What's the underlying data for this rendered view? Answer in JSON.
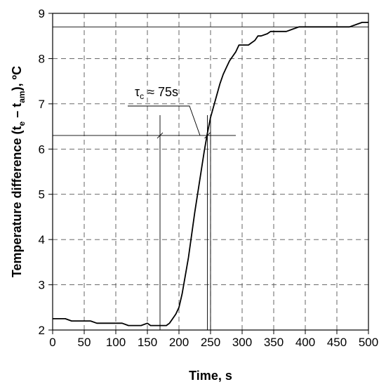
{
  "chart_data": {
    "type": "line",
    "title": "",
    "xlabel": "Time, s",
    "ylabel_parts": {
      "pre": "Temperature difference (t",
      "sub1": "e",
      "mid": " – t",
      "sub2": "am",
      "post": "), ºC"
    },
    "xlim": [
      0,
      500
    ],
    "ylim": [
      2,
      9
    ],
    "x_ticks": [
      0,
      50,
      100,
      150,
      200,
      250,
      300,
      350,
      400,
      450,
      500
    ],
    "y_ticks": [
      2,
      3,
      4,
      5,
      6,
      7,
      8,
      9
    ],
    "grid": true,
    "series": [
      {
        "x": [
          0,
          10,
          20,
          30,
          40,
          50,
          60,
          70,
          80,
          90,
          100,
          110,
          120,
          130,
          140,
          150,
          155,
          160,
          165,
          170,
          175,
          180,
          185,
          190,
          195,
          200,
          205,
          210,
          215,
          220,
          225,
          230,
          235,
          240,
          245,
          250,
          255,
          260,
          265,
          270,
          275,
          280,
          285,
          290,
          295,
          300,
          305,
          310,
          315,
          320,
          325,
          330,
          340,
          345,
          350,
          360,
          370,
          380,
          390,
          400,
          410,
          420,
          430,
          440,
          450,
          460,
          470,
          480,
          490,
          500
        ],
        "y": [
          2.25,
          2.25,
          2.25,
          2.2,
          2.2,
          2.2,
          2.2,
          2.15,
          2.15,
          2.15,
          2.15,
          2.15,
          2.1,
          2.1,
          2.1,
          2.15,
          2.1,
          2.1,
          2.1,
          2.1,
          2.1,
          2.1,
          2.15,
          2.25,
          2.35,
          2.5,
          2.8,
          3.2,
          3.6,
          4.1,
          4.6,
          5.05,
          5.5,
          5.95,
          6.35,
          6.7,
          6.95,
          7.2,
          7.45,
          7.65,
          7.8,
          7.95,
          8.05,
          8.15,
          8.3,
          8.3,
          8.3,
          8.3,
          8.35,
          8.4,
          8.5,
          8.5,
          8.55,
          8.6,
          8.6,
          8.6,
          8.6,
          8.65,
          8.7,
          8.7,
          8.7,
          8.7,
          8.7,
          8.7,
          8.7,
          8.7,
          8.7,
          8.75,
          8.8,
          8.8
        ]
      }
    ],
    "reference_lines": {
      "y_level": 6.3,
      "y_level_x_range": [
        0,
        290
      ],
      "steady_state_y": 8.7,
      "vertical_x": [
        170,
        245,
        250
      ],
      "vertical_top_y": 6.75
    },
    "annotation": {
      "symbol": "τ",
      "subscript": "c",
      "text": " ≈ 75s"
    }
  }
}
